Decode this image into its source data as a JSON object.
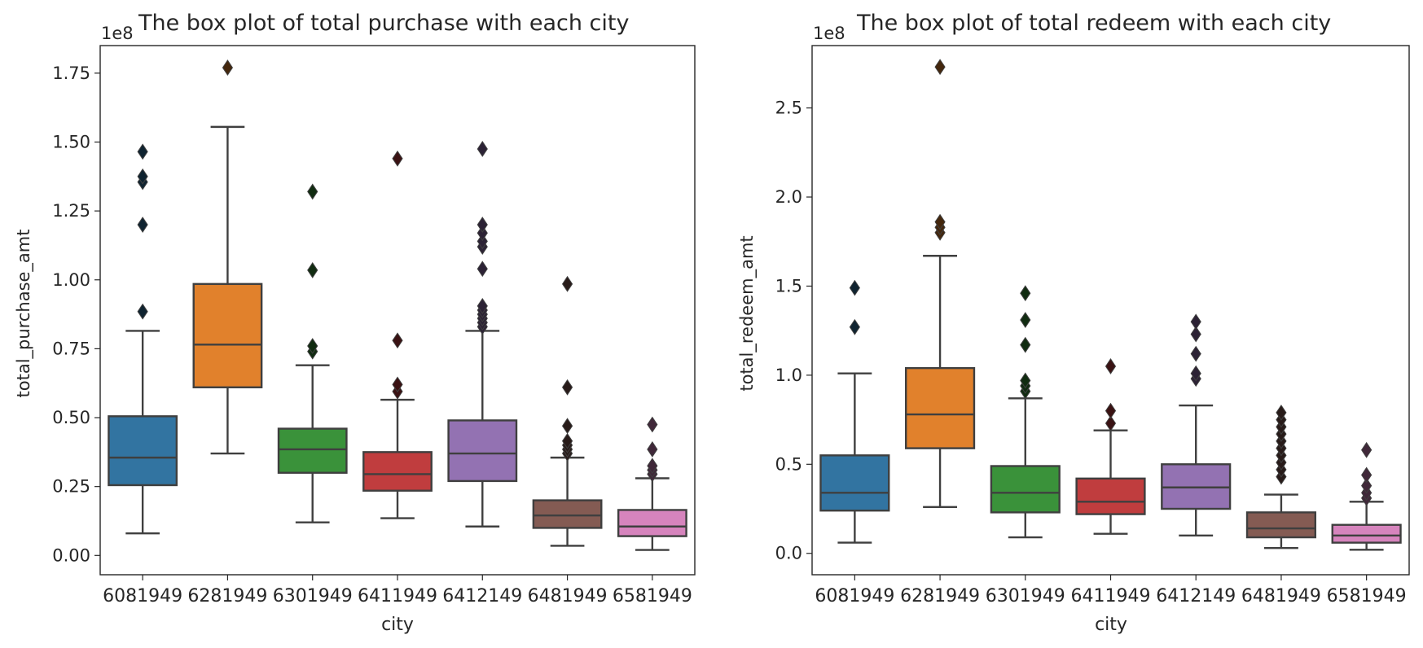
{
  "chart_data": [
    {
      "type": "box",
      "title": "The box plot of total purchase with each city",
      "xlabel": "city",
      "ylabel": "total_purchase_amt",
      "y_offset_label": "1e8",
      "ylim": [
        -0.07,
        1.85
      ],
      "yticks": [
        0.0,
        0.25,
        0.5,
        0.75,
        1.0,
        1.25,
        1.5,
        1.75
      ],
      "ytick_labels": [
        "0.00",
        "0.25",
        "0.50",
        "0.75",
        "1.00",
        "1.25",
        "1.50",
        "1.75"
      ],
      "categories": [
        "6081949",
        "6281949",
        "6301949",
        "6411949",
        "6412149",
        "6481949",
        "6581949"
      ],
      "boxes": [
        {
          "category": "6081949",
          "whislo": 0.08,
          "q1": 0.255,
          "med": 0.355,
          "q3": 0.505,
          "whishi": 0.815,
          "fliers": [
            0.885,
            1.2,
            1.355,
            1.375,
            1.465
          ],
          "color": "#3274a1"
        },
        {
          "category": "6281949",
          "whislo": 0.37,
          "q1": 0.61,
          "med": 0.765,
          "q3": 0.985,
          "whishi": 1.555,
          "fliers": [
            1.77
          ],
          "color": "#e1812c"
        },
        {
          "category": "6301949",
          "whislo": 0.12,
          "q1": 0.3,
          "med": 0.385,
          "q3": 0.46,
          "whishi": 0.69,
          "fliers": [
            0.74,
            0.76,
            1.035,
            1.32
          ],
          "color": "#3a923a"
        },
        {
          "category": "6411949",
          "whislo": 0.135,
          "q1": 0.235,
          "med": 0.295,
          "q3": 0.375,
          "whishi": 0.565,
          "fliers": [
            0.595,
            0.62,
            0.78,
            1.44
          ],
          "color": "#c03d3e"
        },
        {
          "category": "6412149",
          "whislo": 0.105,
          "q1": 0.27,
          "med": 0.37,
          "q3": 0.49,
          "whishi": 0.815,
          "fliers": [
            0.83,
            0.845,
            0.86,
            0.875,
            0.89,
            0.905,
            1.04,
            1.12,
            1.14,
            1.17,
            1.2,
            1.475
          ],
          "color": "#9372b2"
        },
        {
          "category": "6481949",
          "whislo": 0.035,
          "q1": 0.1,
          "med": 0.145,
          "q3": 0.2,
          "whishi": 0.355,
          "fliers": [
            0.37,
            0.385,
            0.4,
            0.415,
            0.47,
            0.61,
            0.985
          ],
          "color": "#845b53"
        },
        {
          "category": "6581949",
          "whislo": 0.02,
          "q1": 0.07,
          "med": 0.105,
          "q3": 0.165,
          "whishi": 0.28,
          "fliers": [
            0.295,
            0.31,
            0.325,
            0.385,
            0.475
          ],
          "color": "#d684bd"
        }
      ]
    },
    {
      "type": "box",
      "title": "The box plot of total redeem with each city",
      "xlabel": "city",
      "ylabel": "total_redeem_amt",
      "y_offset_label": "1e8",
      "ylim": [
        -0.12,
        2.85
      ],
      "yticks": [
        0.0,
        0.5,
        1.0,
        1.5,
        2.0,
        2.5
      ],
      "ytick_labels": [
        "0.0",
        "0.5",
        "1.0",
        "1.5",
        "2.0",
        "2.5"
      ],
      "categories": [
        "6081949",
        "6281949",
        "6301949",
        "6411949",
        "6412149",
        "6481949",
        "6581949"
      ],
      "boxes": [
        {
          "category": "6081949",
          "whislo": 0.06,
          "q1": 0.24,
          "med": 0.34,
          "q3": 0.55,
          "whishi": 1.01,
          "fliers": [
            1.27,
            1.49
          ],
          "color": "#3274a1"
        },
        {
          "category": "6281949",
          "whislo": 0.26,
          "q1": 0.59,
          "med": 0.78,
          "q3": 1.04,
          "whishi": 1.67,
          "fliers": [
            1.8,
            1.83,
            1.86,
            2.73
          ],
          "color": "#e1812c"
        },
        {
          "category": "6301949",
          "whislo": 0.09,
          "q1": 0.23,
          "med": 0.34,
          "q3": 0.49,
          "whishi": 0.87,
          "fliers": [
            0.91,
            0.94,
            0.97,
            1.17,
            1.31,
            1.46
          ],
          "color": "#3a923a"
        },
        {
          "category": "6411949",
          "whislo": 0.11,
          "q1": 0.22,
          "med": 0.29,
          "q3": 0.42,
          "whishi": 0.69,
          "fliers": [
            0.73,
            0.8,
            1.05
          ],
          "color": "#c03d3e"
        },
        {
          "category": "6412149",
          "whislo": 0.1,
          "q1": 0.25,
          "med": 0.37,
          "q3": 0.5,
          "whishi": 0.83,
          "fliers": [
            0.98,
            1.01,
            1.12,
            1.23,
            1.3
          ],
          "color": "#9372b2"
        },
        {
          "category": "6481949",
          "whislo": 0.03,
          "q1": 0.09,
          "med": 0.14,
          "q3": 0.23,
          "whishi": 0.33,
          "fliers": [
            0.43,
            0.47,
            0.51,
            0.55,
            0.59,
            0.63,
            0.67,
            0.71,
            0.75,
            0.79
          ],
          "color": "#845b53"
        },
        {
          "category": "6581949",
          "whislo": 0.02,
          "q1": 0.06,
          "med": 0.1,
          "q3": 0.16,
          "whishi": 0.29,
          "fliers": [
            0.31,
            0.34,
            0.38,
            0.44,
            0.58
          ],
          "color": "#d684bd"
        }
      ]
    }
  ]
}
